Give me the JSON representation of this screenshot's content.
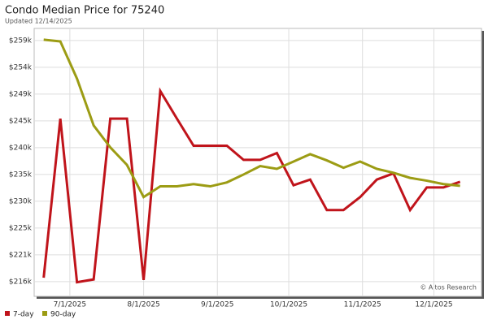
{
  "chart_data": {
    "type": "line",
    "title": "Condo Median Price for 75240",
    "subtitle": "Updated 12/14/2025",
    "watermark": "© Altos Research",
    "x": [
      "2025-06-20",
      "2025-06-27",
      "2025-07-04",
      "2025-07-11",
      "2025-07-18",
      "2025-07-25",
      "2025-08-01",
      "2025-08-08",
      "2025-08-15",
      "2025-08-22",
      "2025-08-29",
      "2025-09-05",
      "2025-09-12",
      "2025-09-19",
      "2025-09-26",
      "2025-10-03",
      "2025-10-10",
      "2025-10-17",
      "2025-10-24",
      "2025-10-31",
      "2025-11-07",
      "2025-11-14",
      "2025-11-21",
      "2025-11-28",
      "2025-12-05",
      "2025-12-12"
    ],
    "series": [
      {
        "name": "7-day",
        "color": "#c0141b",
        "values": [
          216700,
          244900,
          215900,
          216400,
          244900,
          244900,
          216300,
          249800,
          244900,
          240100,
          240100,
          240100,
          237600,
          237600,
          238800,
          233100,
          234100,
          228700,
          228700,
          231000,
          234100,
          235200,
          228700,
          232700,
          232700,
          233700
        ]
      },
      {
        "name": "90-day",
        "color": "#9c9c14",
        "values": [
          258900,
          258600,
          252000,
          243700,
          239800,
          236700,
          231000,
          232900,
          232900,
          233300,
          232900,
          233600,
          235000,
          236500,
          236000,
          237300,
          238600,
          237500,
          236200,
          237300,
          236000,
          235300,
          234400,
          233900,
          233300,
          233000
        ]
      }
    ],
    "xlim": [
      "2025-06-16",
      "2025-12-21"
    ],
    "xticks": [
      {
        "value": "2025-07-01",
        "label": "7/1/2025"
      },
      {
        "value": "2025-08-01",
        "label": "8/1/2025"
      },
      {
        "value": "2025-09-01",
        "label": "9/1/2025"
      },
      {
        "value": "2025-10-01",
        "label": "10/1/2025"
      },
      {
        "value": "2025-11-01",
        "label": "11/1/2025"
      },
      {
        "value": "2025-12-01",
        "label": "12/1/2025"
      }
    ],
    "ylim": [
      213400,
      260900
    ],
    "yticks": [
      {
        "value": 216000,
        "label": "$216k"
      },
      {
        "value": 220750,
        "label": "$221k"
      },
      {
        "value": 225500,
        "label": "$225k"
      },
      {
        "value": 230250,
        "label": "$230k"
      },
      {
        "value": 235000,
        "label": "$235k"
      },
      {
        "value": 239750,
        "label": "$240k"
      },
      {
        "value": 244500,
        "label": "$245k"
      },
      {
        "value": 249250,
        "label": "$249k"
      },
      {
        "value": 254000,
        "label": "$254k"
      },
      {
        "value": 258750,
        "label": "$259k"
      }
    ],
    "grid": true
  }
}
